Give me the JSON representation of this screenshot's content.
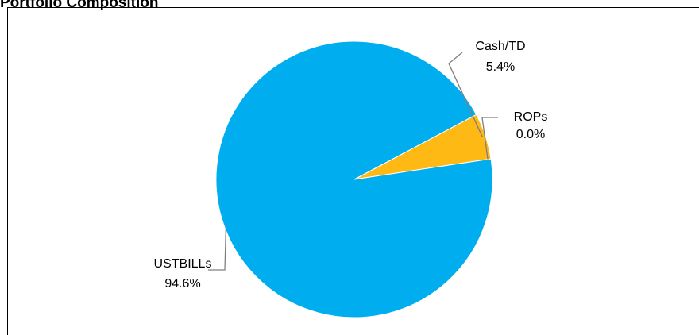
{
  "chart_data": {
    "type": "pie",
    "title": "Portfolio Composition",
    "slices": [
      {
        "label": "Cash/TD",
        "value": 5.4,
        "display": "5.4%",
        "color": "#FFB915"
      },
      {
        "label": "ROPs",
        "value": 0.0,
        "display": "0.0%",
        "color": "#7F7F7F"
      },
      {
        "label": "USTBILLs",
        "value": 94.6,
        "display": "94.6%",
        "color": "#00AEEF"
      }
    ],
    "legend": "none",
    "grid": false
  }
}
